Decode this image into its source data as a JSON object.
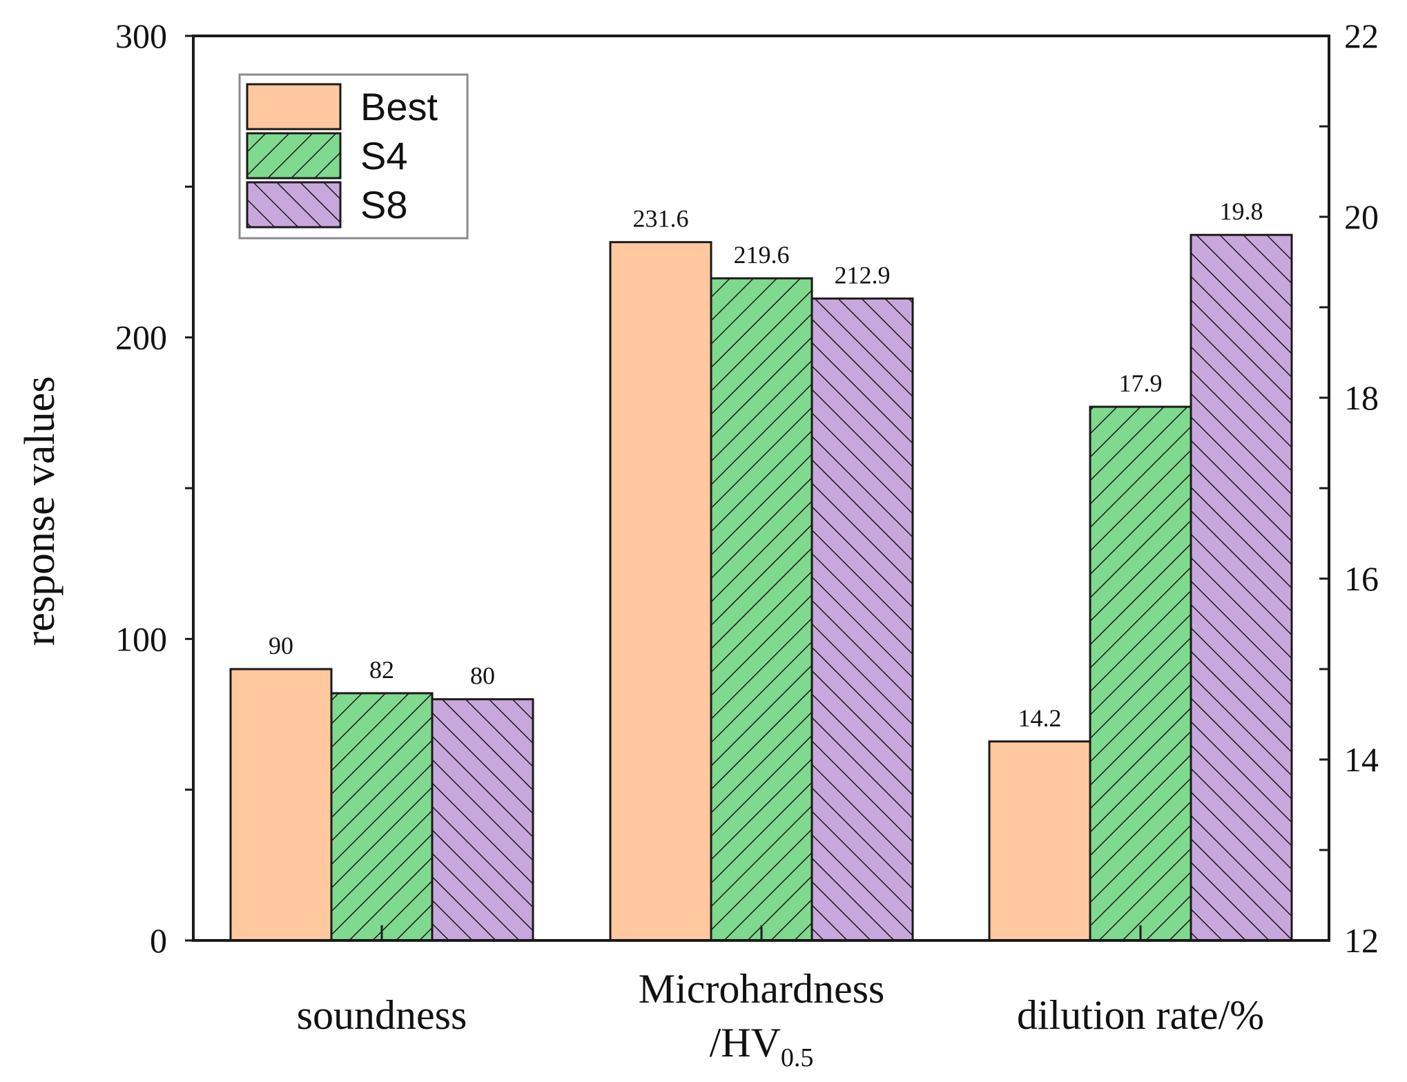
{
  "chart_data": {
    "type": "bar",
    "categories": [
      "soundness",
      "Microhardness",
      "dilution rate/%"
    ],
    "category_label_lines": [
      [
        "soundness"
      ],
      [
        "Microhardness",
        "/HV0.5"
      ],
      [
        "dilution rate/%"
      ]
    ],
    "series": [
      {
        "name": "Best",
        "values": [
          90,
          231.6,
          14.2
        ],
        "labels": [
          "90",
          "231.6",
          "14.2"
        ],
        "color": "#ffc89e",
        "pattern": "none"
      },
      {
        "name": "S4",
        "values": [
          82,
          219.6,
          17.9
        ],
        "labels": [
          "82",
          "219.6",
          "17.9"
        ],
        "color": "#7fd98e",
        "pattern": "forward-hatch"
      },
      {
        "name": "S8",
        "values": [
          80,
          212.9,
          19.8
        ],
        "labels": [
          "80",
          "212.9",
          "19.8"
        ],
        "color": "#c8a8dc",
        "pattern": "back-hatch"
      }
    ],
    "axis_assignment": [
      "left",
      "left",
      "right"
    ],
    "ylabel": "response values",
    "ylim_left": [
      0,
      300
    ],
    "yticks_left": [
      "0",
      "100",
      "200",
      "300"
    ],
    "ylim_right": [
      12,
      22
    ],
    "yticks_right": [
      "12",
      "14",
      "16",
      "18",
      "20",
      "22"
    ],
    "grid": false,
    "legend_position": "top-left"
  }
}
